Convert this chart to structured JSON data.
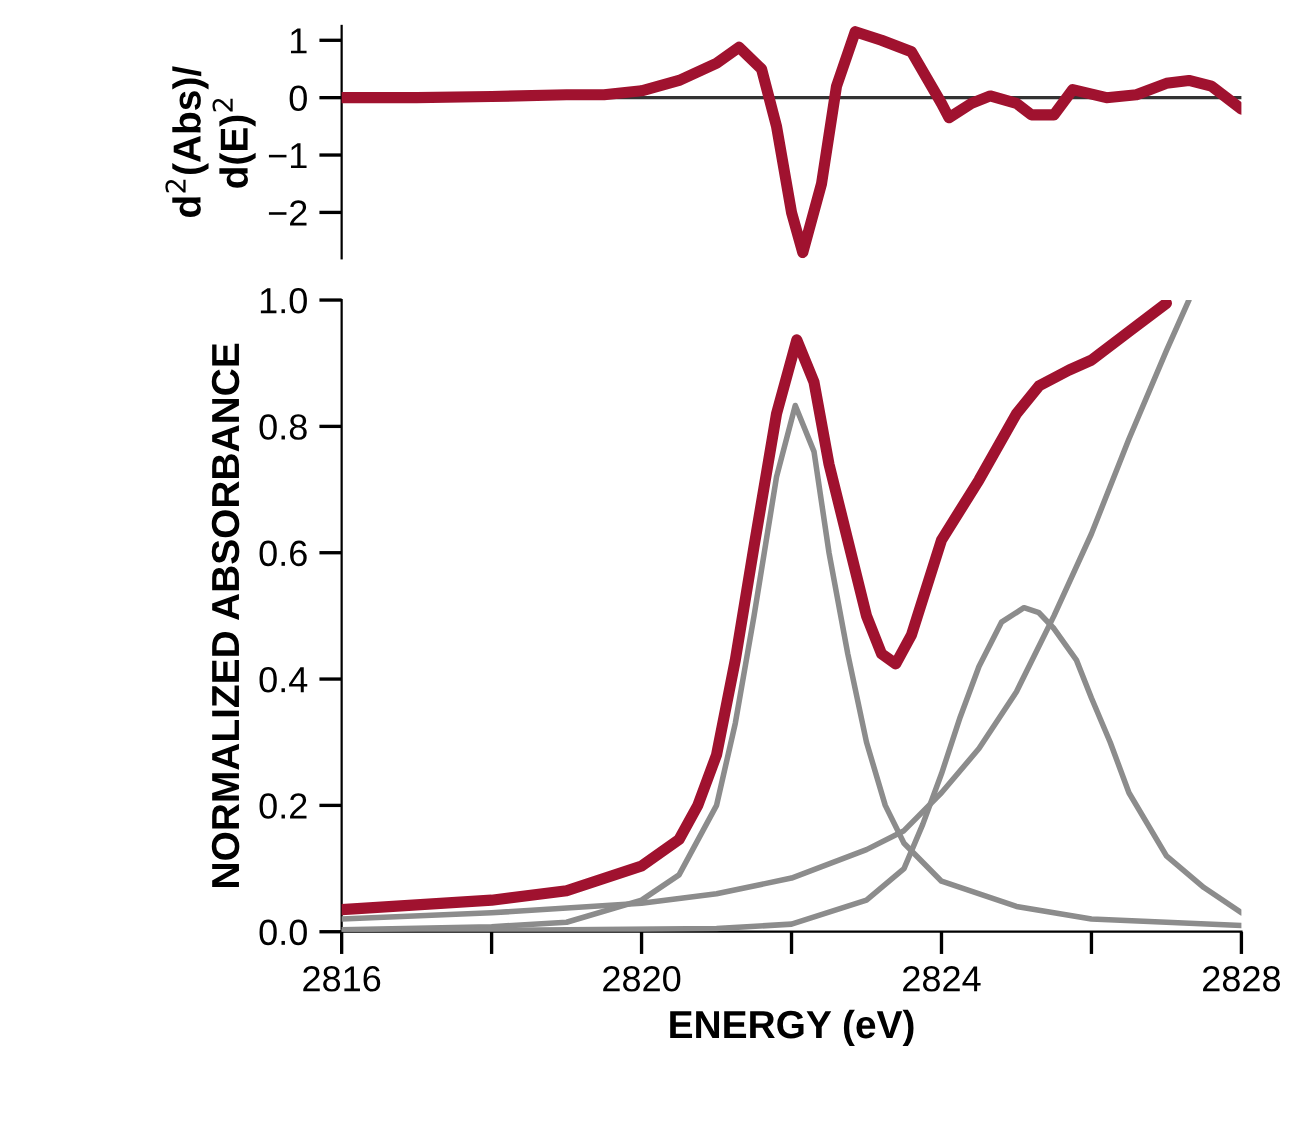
{
  "chart_data": [
    {
      "type": "line",
      "ylabel": "d$^{2}$(Abs)/\nd(E)$^{2}$",
      "xlim": [
        2816,
        2828
      ],
      "ylim": [
        -2.8,
        1.25
      ],
      "yticks": [
        {
          "value": 1,
          "label": "1"
        },
        {
          "value": 0,
          "label": "0"
        },
        {
          "value": -2,
          "label": "−2"
        },
        {
          "value": -1,
          "label": "−1"
        }
      ],
      "tick_labels": "y",
      "grid": false,
      "legend": false,
      "ref_lines": [
        {
          "axis": "y",
          "value": 0,
          "color": "#333333"
        }
      ],
      "series": [
        {
          "color": "#a0122f",
          "x": [
            2816,
            2817,
            2818,
            2819,
            2819.5,
            2820,
            2820.5,
            2821,
            2821.3,
            2821.6,
            2821.8,
            2822.0,
            2822.15,
            2822.4,
            2822.6,
            2822.85,
            2823.2,
            2823.6,
            2824.0,
            2824.1,
            2824.4,
            2824.65,
            2825.0,
            2825.2,
            2825.5,
            2825.75,
            2826.2,
            2826.6,
            2827.0,
            2827.3,
            2827.6,
            2828
          ],
          "values": [
            0,
            0,
            0.02,
            0.05,
            0.05,
            0.12,
            0.3,
            0.6,
            0.88,
            0.5,
            -0.5,
            -2.0,
            -2.7,
            -1.5,
            0.2,
            1.15,
            1.0,
            0.8,
            -0.1,
            -0.35,
            -0.1,
            0.03,
            -0.1,
            -0.3,
            -0.3,
            0.14,
            0.0,
            0.05,
            0.25,
            0.3,
            0.2,
            -0.2
          ]
        }
      ]
    },
    {
      "type": "line",
      "xlabel": "ENERGY (eV)",
      "ylabel": "NORMALIZED ABSORBANCE",
      "xlim": [
        2816,
        2828
      ],
      "ylim": [
        0,
        1.0
      ],
      "xticks": [
        2816,
        {
          "value": 2818,
          "label": null
        },
        2820,
        {
          "value": 2822,
          "label": null
        },
        2824,
        {
          "value": 2826,
          "label": null
        },
        2828
      ],
      "yticks": [
        {
          "value": 0,
          "label": "0.0"
        },
        0.2,
        0.4,
        0.6,
        0.8,
        {
          "value": 1,
          "label": "1.0"
        }
      ],
      "grid": false,
      "legend": false,
      "series": [
        {
          "color": "#8c8c8c",
          "x": [
            2816,
            2818,
            2819,
            2820,
            2820.5,
            2821,
            2821.25,
            2821.5,
            2821.8,
            2822.05,
            2822.3,
            2822.5,
            2822.75,
            2823,
            2823.25,
            2823.5,
            2824,
            2825,
            2826,
            2828
          ],
          "values": [
            0.003,
            0.008,
            0.015,
            0.05,
            0.09,
            0.2,
            0.33,
            0.5,
            0.72,
            0.833,
            0.76,
            0.6,
            0.44,
            0.3,
            0.2,
            0.14,
            0.08,
            0.04,
            0.02,
            0.01
          ]
        },
        {
          "color": "#8c8c8c",
          "x": [
            2816,
            2821,
            2822,
            2823,
            2823.5,
            2823.75,
            2824,
            2824.25,
            2824.5,
            2824.8,
            2825.1,
            2825.3,
            2825.5,
            2825.8,
            2826,
            2826.25,
            2826.5,
            2827,
            2827.5,
            2828
          ],
          "values": [
            0.0,
            0.005,
            0.012,
            0.05,
            0.1,
            0.17,
            0.25,
            0.34,
            0.42,
            0.49,
            0.513,
            0.505,
            0.48,
            0.43,
            0.37,
            0.3,
            0.22,
            0.12,
            0.07,
            0.03
          ]
        },
        {
          "color": "#8c8c8c",
          "x": [
            2816,
            2818,
            2820,
            2821,
            2822,
            2823,
            2823.5,
            2824,
            2824.5,
            2825,
            2825.5,
            2826,
            2826.5,
            2827,
            2827.3
          ],
          "values": [
            0.02,
            0.03,
            0.045,
            0.06,
            0.085,
            0.13,
            0.16,
            0.22,
            0.29,
            0.38,
            0.5,
            0.63,
            0.78,
            0.92,
            1.0
          ]
        },
        {
          "color": "#a0122f",
          "x": [
            2816,
            2818,
            2819,
            2820,
            2820.5,
            2820.75,
            2821,
            2821.25,
            2821.5,
            2821.8,
            2822.07,
            2822.3,
            2822.5,
            2822.75,
            2823,
            2823.2,
            2823.39,
            2823.6,
            2824,
            2824.5,
            2825,
            2825.3,
            2825.7,
            2826,
            2826.5,
            2827
          ],
          "values": [
            0.035,
            0.05,
            0.065,
            0.104,
            0.146,
            0.2,
            0.28,
            0.43,
            0.61,
            0.82,
            0.937,
            0.87,
            0.74,
            0.62,
            0.5,
            0.44,
            0.424,
            0.47,
            0.62,
            0.715,
            0.82,
            0.864,
            0.889,
            0.905,
            0.95,
            0.995
          ]
        }
      ]
    }
  ]
}
